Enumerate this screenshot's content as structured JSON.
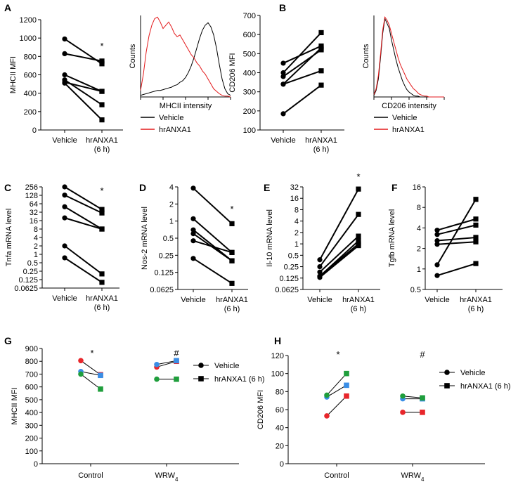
{
  "figure": {
    "conditions": [
      "Vehicle",
      "hrANXA1"
    ],
    "condition_line2": "(6 h)",
    "legend_long": "hrANXA1 (6 h)"
  },
  "chart_data": [
    {
      "id": "A",
      "type": "line",
      "scale": "linear",
      "ylabel": "MHCII MFI",
      "ylim": [
        0,
        1200
      ],
      "yticks": [
        "0",
        "200",
        "400",
        "600",
        "800",
        "1000",
        "1200"
      ],
      "ytick_values": [
        0,
        200,
        400,
        600,
        800,
        1000,
        1200
      ],
      "categories": [
        "Vehicle",
        "hrANXA1"
      ],
      "pairs": [
        [
          990,
          720
        ],
        [
          830,
          750
        ],
        [
          600,
          420
        ],
        [
          545,
          275
        ],
        [
          520,
          420
        ],
        [
          510,
          110
        ]
      ],
      "annotation": "*"
    },
    {
      "id": "A-hist",
      "type": "line",
      "xlabel": "MHCII intensity",
      "ylabel": "Counts",
      "series": [
        {
          "name": "Vehicle",
          "color": "#000000",
          "values": [
            2,
            3,
            4,
            5,
            6,
            7,
            8,
            8,
            9,
            10,
            11,
            12,
            14,
            15,
            18,
            20,
            24,
            30,
            38,
            48,
            60,
            72,
            82,
            88,
            91,
            86,
            76,
            60,
            40,
            22,
            10,
            4,
            2
          ]
        },
        {
          "name": "hrANXA1",
          "color": "#e31a1c",
          "values": [
            8,
            28,
            55,
            75,
            88,
            96,
            98,
            92,
            84,
            88,
            92,
            86,
            78,
            74,
            76,
            70,
            64,
            58,
            52,
            48,
            42,
            38,
            32,
            28,
            22,
            16,
            10,
            7,
            4,
            2,
            1,
            1,
            0
          ]
        }
      ]
    },
    {
      "id": "B",
      "type": "line",
      "scale": "linear",
      "ylabel": "CD206 MFI",
      "ylim": [
        100,
        700
      ],
      "yticks": [
        "100",
        "200",
        "300",
        "400",
        "500",
        "600",
        "700"
      ],
      "ytick_values": [
        100,
        200,
        300,
        400,
        500,
        600,
        700
      ],
      "categories": [
        "Vehicle",
        "hrANXA1"
      ],
      "pairs": [
        [
          450,
          540
        ],
        [
          400,
          610
        ],
        [
          380,
          520
        ],
        [
          340,
          410
        ],
        [
          340,
          530
        ],
        [
          185,
          335
        ]
      ],
      "annotation": "*"
    },
    {
      "id": "B-hist",
      "type": "line",
      "xlabel": "CD206 intensity",
      "ylabel": "Counts",
      "series": [
        {
          "name": "Vehicle",
          "color": "#000000",
          "values": [
            2,
            8,
            22,
            48,
            78,
            96,
            90,
            84,
            70,
            58,
            46,
            36,
            28,
            20,
            14,
            9,
            6,
            4,
            2,
            1,
            1,
            0,
            0,
            0,
            0,
            0,
            0,
            0,
            0,
            0,
            0,
            0,
            0
          ]
        },
        {
          "name": "hrANXA1",
          "color": "#e31a1c",
          "values": [
            3,
            10,
            26,
            52,
            82,
            98,
            94,
            88,
            78,
            68,
            58,
            48,
            40,
            34,
            28,
            22,
            18,
            14,
            10,
            8,
            5,
            3,
            2,
            1,
            1,
            0,
            0,
            0,
            0,
            0,
            0,
            0,
            0
          ]
        }
      ]
    },
    {
      "id": "C",
      "type": "line",
      "scale": "log2",
      "ylabel": "Tnfa mRNA level",
      "yticks": [
        "0.0625",
        "0.125",
        "0.25",
        "0.5",
        "1",
        "2",
        "4",
        "8",
        "16",
        "32",
        "64",
        "128",
        "256"
      ],
      "ytick_values": [
        0.0625,
        0.125,
        0.25,
        0.5,
        1,
        2,
        4,
        8,
        16,
        32,
        64,
        128,
        256
      ],
      "categories": [
        "Vehicle",
        "hrANXA1"
      ],
      "pairs": [
        [
          256,
          40
        ],
        [
          130,
          30
        ],
        [
          50,
          8
        ],
        [
          20,
          8
        ],
        [
          2,
          0.2
        ],
        [
          0.75,
          0.1
        ]
      ],
      "annotation": "*"
    },
    {
      "id": "D",
      "type": "line",
      "scale": "log2",
      "ylabel": "Nos-2 mRNA level",
      "yticks": [
        "0.0625",
        "0.125",
        "0.25",
        "0.5",
        "1",
        "2",
        "4"
      ],
      "ytick_values": [
        0.0625,
        0.125,
        0.25,
        0.5,
        1,
        2,
        4
      ],
      "categories": [
        "Vehicle",
        "hrANXA1"
      ],
      "pairs": [
        [
          3.8,
          0.9
        ],
        [
          1.1,
          0.28
        ],
        [
          0.7,
          0.2
        ],
        [
          0.6,
          0.2
        ],
        [
          0.45,
          0.28
        ],
        [
          0.22,
          0.08
        ]
      ],
      "annotation": "*"
    },
    {
      "id": "E",
      "type": "line",
      "scale": "log2",
      "ylabel": "Il-10 mRNA level",
      "yticks": [
        "0.0625",
        "0.125",
        "0.25",
        "0.5",
        "1",
        "2",
        "4",
        "8",
        "16",
        "32"
      ],
      "ytick_values": [
        0.0625,
        0.125,
        0.25,
        0.5,
        1,
        2,
        4,
        8,
        16,
        32
      ],
      "categories": [
        "Vehicle",
        "hrANXA1"
      ],
      "pairs": [
        [
          0.38,
          28
        ],
        [
          0.25,
          6
        ],
        [
          0.18,
          1.6
        ],
        [
          0.14,
          1.2
        ],
        [
          0.14,
          1.0
        ],
        [
          0.13,
          0.9
        ]
      ],
      "annotation": "*"
    },
    {
      "id": "F",
      "type": "line",
      "scale": "log2",
      "ylabel": "Tgfb mRNA level",
      "yticks": [
        "0.5",
        "1",
        "2",
        "4",
        "8",
        "16"
      ],
      "ytick_values": [
        0.5,
        1,
        2,
        4,
        8,
        16
      ],
      "categories": [
        "Vehicle",
        "hrANXA1"
      ],
      "pairs": [
        [
          3.7,
          5.4
        ],
        [
          3.2,
          4.4
        ],
        [
          2.6,
          2.9
        ],
        [
          2.3,
          2.5
        ],
        [
          1.15,
          10.5
        ],
        [
          0.8,
          1.2
        ]
      ],
      "annotation": ""
    },
    {
      "id": "G",
      "type": "line",
      "scale": "linear",
      "ylabel": "MHCII MFI",
      "ylim": [
        0,
        900
      ],
      "yticks": [
        "0",
        "100",
        "200",
        "300",
        "400",
        "500",
        "600",
        "700",
        "800",
        "900"
      ],
      "ytick_values": [
        0,
        100,
        200,
        300,
        400,
        500,
        600,
        700,
        800,
        900
      ],
      "groups": [
        "Control",
        "WRW4"
      ],
      "group_label_sub": "4",
      "series": [
        {
          "name": "red",
          "color": "#e8262b",
          "control": [
            805,
            695
          ],
          "wrw": [
            755,
            800
          ]
        },
        {
          "name": "blue",
          "color": "#3a8ee6",
          "control": [
            720,
            690
          ],
          "wrw": [
            775,
            805
          ]
        },
        {
          "name": "green",
          "color": "#1f9e3c",
          "control": [
            700,
            583
          ],
          "wrw": [
            660,
            660
          ]
        }
      ],
      "annotations": [
        "*",
        "#"
      ]
    },
    {
      "id": "H",
      "type": "line",
      "scale": "linear",
      "ylabel": "CD206 MFI",
      "ylim": [
        0,
        120
      ],
      "yticks": [
        "0",
        "20",
        "40",
        "60",
        "80",
        "100",
        "120"
      ],
      "ytick_values": [
        0,
        20,
        40,
        60,
        80,
        100,
        120
      ],
      "groups": [
        "Control",
        "WRW4"
      ],
      "group_label_sub": "4",
      "series": [
        {
          "name": "red",
          "color": "#e8262b",
          "control": [
            53,
            75
          ],
          "wrw": [
            57,
            57
          ]
        },
        {
          "name": "blue",
          "color": "#3a8ee6",
          "control": [
            74,
            87
          ],
          "wrw": [
            72,
            72
          ]
        },
        {
          "name": "green",
          "color": "#1f9e3c",
          "control": [
            76,
            100
          ],
          "wrw": [
            75,
            73
          ]
        }
      ],
      "annotations": [
        "*",
        "#"
      ]
    }
  ]
}
